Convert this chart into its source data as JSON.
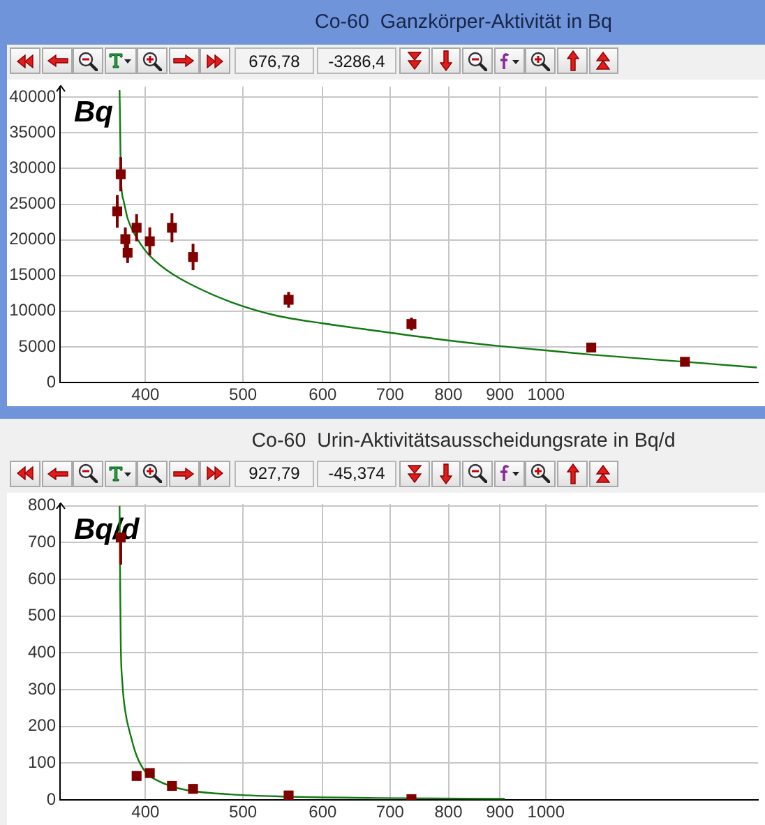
{
  "chart_data": [
    {
      "type": "scatter",
      "title": "Co-60  Ganzkörper-Aktivität in Bq",
      "ylabel": "Bq",
      "log": "x",
      "grid": true,
      "xlim": [
        329,
        1624
      ],
      "xticks": [
        400,
        500,
        600,
        700,
        800,
        900,
        1000
      ],
      "ylim": [
        0,
        41500
      ],
      "yticks": [
        0,
        5000,
        10000,
        15000,
        20000,
        25000,
        30000,
        35000,
        40000
      ],
      "annotations": [
        "676,78",
        "-3286,4"
      ],
      "series": [
        {
          "type": "scatter",
          "marker": "square",
          "color": "#800000",
          "x": [
            375,
            378,
            382,
            384,
            392,
            404,
            425,
            446,
            555,
            735,
            1109,
            1374
          ],
          "values": [
            24000,
            29200,
            20100,
            18200,
            21700,
            19800,
            21700,
            17600,
            11600,
            8200,
            4900,
            2900
          ],
          "errors": [
            2300,
            2400,
            1650,
            1450,
            1900,
            1950,
            2050,
            1850,
            1100,
            900,
            null,
            null
          ]
        },
        {
          "type": "line",
          "marker": "none",
          "color": "#107a10",
          "x": [
            377,
            377.5,
            378,
            380.5,
            384,
            389.5,
            402,
            419.5,
            446,
            486,
            539,
            600,
            683,
            800,
            900,
            1000,
            1109,
            1374,
            1620
          ],
          "values": [
            41000,
            35800,
            29400,
            25500,
            23000,
            21000,
            18100,
            15800,
            13600,
            11300,
            9400,
            8300,
            7200,
            5900,
            5100,
            4500,
            3900,
            2900,
            2100
          ]
        }
      ]
    },
    {
      "type": "scatter",
      "title": "Co-60  Urin-Aktivitätsausscheidungsrate in Bq/d",
      "ylabel": "Bq/d",
      "log": "x",
      "grid": true,
      "xlim": [
        329,
        1624
      ],
      "xticks": [
        400,
        500,
        600,
        700,
        800,
        900,
        1000
      ],
      "ylim": [
        0,
        805
      ],
      "yticks": [
        0,
        100,
        200,
        300,
        400,
        500,
        600,
        700,
        800
      ],
      "annotations": [
        "927,79",
        "-45,374"
      ],
      "series": [
        {
          "type": "scatter",
          "marker": "square",
          "color": "#800000",
          "x": [
            378,
            392,
            404,
            425,
            446,
            555,
            735
          ],
          "values": [
            714,
            65,
            73,
            38,
            30,
            12,
            2
          ],
          "errors": [
            [
              640,
              725
            ],
            null,
            null,
            null,
            null,
            null,
            null
          ]
        },
        {
          "type": "line",
          "marker": "none",
          "color": "#107a10",
          "x": [
            377,
            377.5,
            378,
            379.5,
            382,
            386.5,
            392,
            400,
            413,
            437,
            486,
            551,
            683,
            910
          ],
          "values": [
            800,
            594,
            430,
            316,
            240,
            177,
            120,
            76,
            50,
            28,
            15,
            9,
            5,
            3
          ]
        }
      ]
    }
  ]
}
